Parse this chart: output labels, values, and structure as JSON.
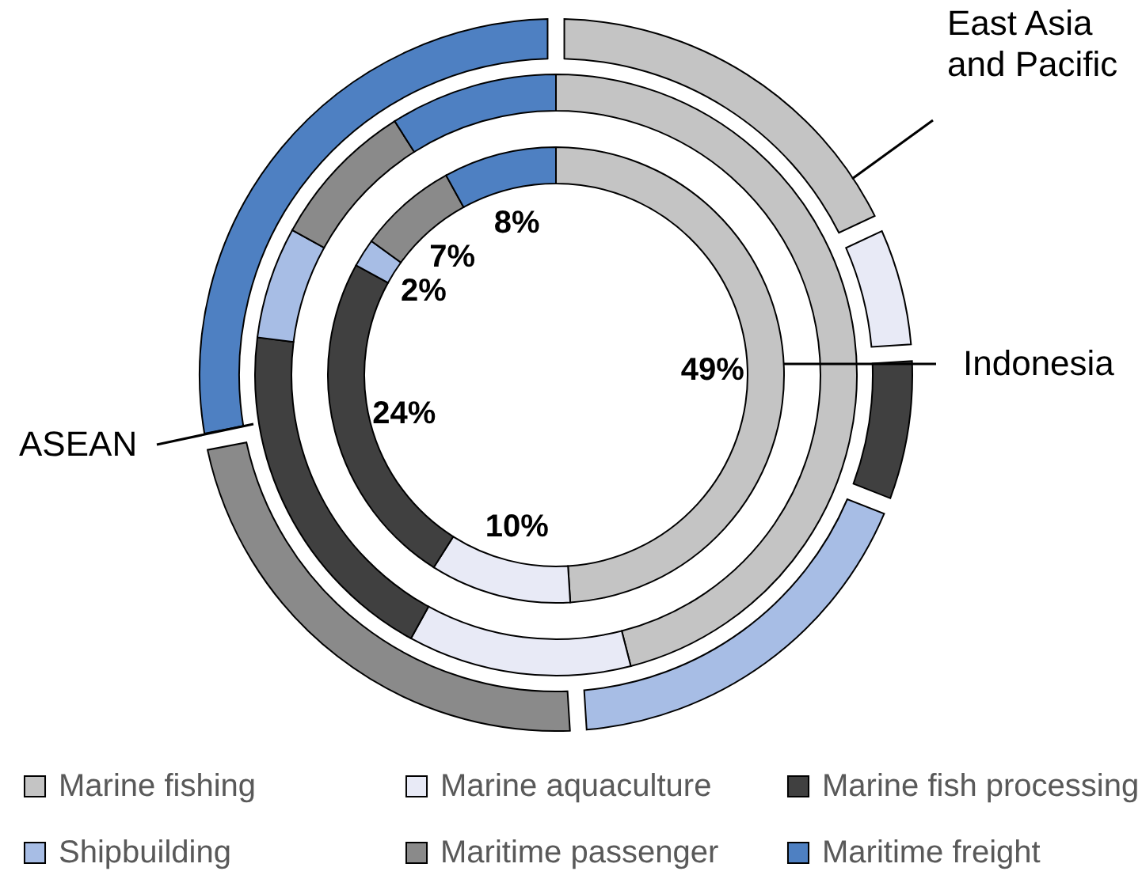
{
  "chart_data": {
    "type": "donut",
    "categories": [
      "Marine fishing",
      "Marine aquaculture",
      "Marine fish processing",
      "Shipbuilding",
      "Maritime passenger",
      "Maritime freight"
    ],
    "colors": [
      "#c4c4c4",
      "#e8eaf6",
      "#404040",
      "#a7bde5",
      "#8a8a8a",
      "#4e80c2"
    ],
    "series": [
      {
        "name": "Indonesia",
        "values": [
          49,
          10,
          24,
          2,
          7,
          8
        ],
        "value_labels": [
          "49%",
          "10%",
          "24%",
          "2%",
          "7%",
          "8%"
        ]
      },
      {
        "name": "ASEAN",
        "values": [
          46,
          12,
          19,
          6,
          8,
          9
        ]
      },
      {
        "name": "East Asia and Pacific",
        "values": [
          18,
          6,
          7,
          18,
          23,
          28
        ]
      }
    ],
    "legend": "bottom"
  }
}
